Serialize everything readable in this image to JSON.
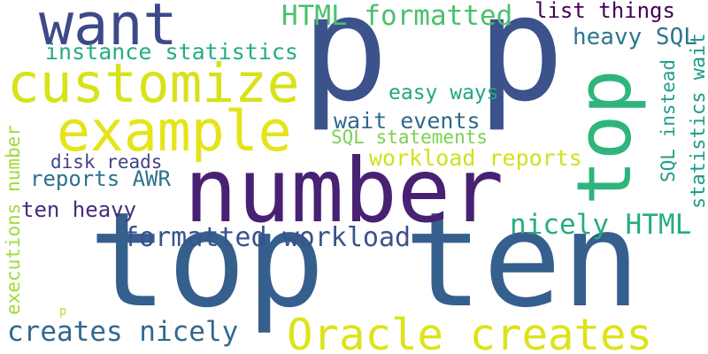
{
  "words": [
    {
      "text": "p p"
    },
    {
      "text": "top ten"
    },
    {
      "text": "number"
    },
    {
      "text": "top"
    },
    {
      "text": "customize"
    },
    {
      "text": "example"
    },
    {
      "text": "want"
    },
    {
      "text": "HTML formatted"
    },
    {
      "text": "list things"
    },
    {
      "text": "heavy SQL"
    },
    {
      "text": "instance statistics"
    },
    {
      "text": "easy ways"
    },
    {
      "text": "wait events"
    },
    {
      "text": "SQL statements"
    },
    {
      "text": "workload reports"
    },
    {
      "text": "disk reads"
    },
    {
      "text": "reports AWR"
    },
    {
      "text": "ten heavy"
    },
    {
      "text": "formatted workload"
    },
    {
      "text": "nicely HTML"
    },
    {
      "text": "creates nicely"
    },
    {
      "text": "Oracle creates"
    },
    {
      "text": "SQL instead"
    },
    {
      "text": "statistics wait"
    },
    {
      "text": "executions number"
    },
    {
      "text": "p"
    }
  ]
}
